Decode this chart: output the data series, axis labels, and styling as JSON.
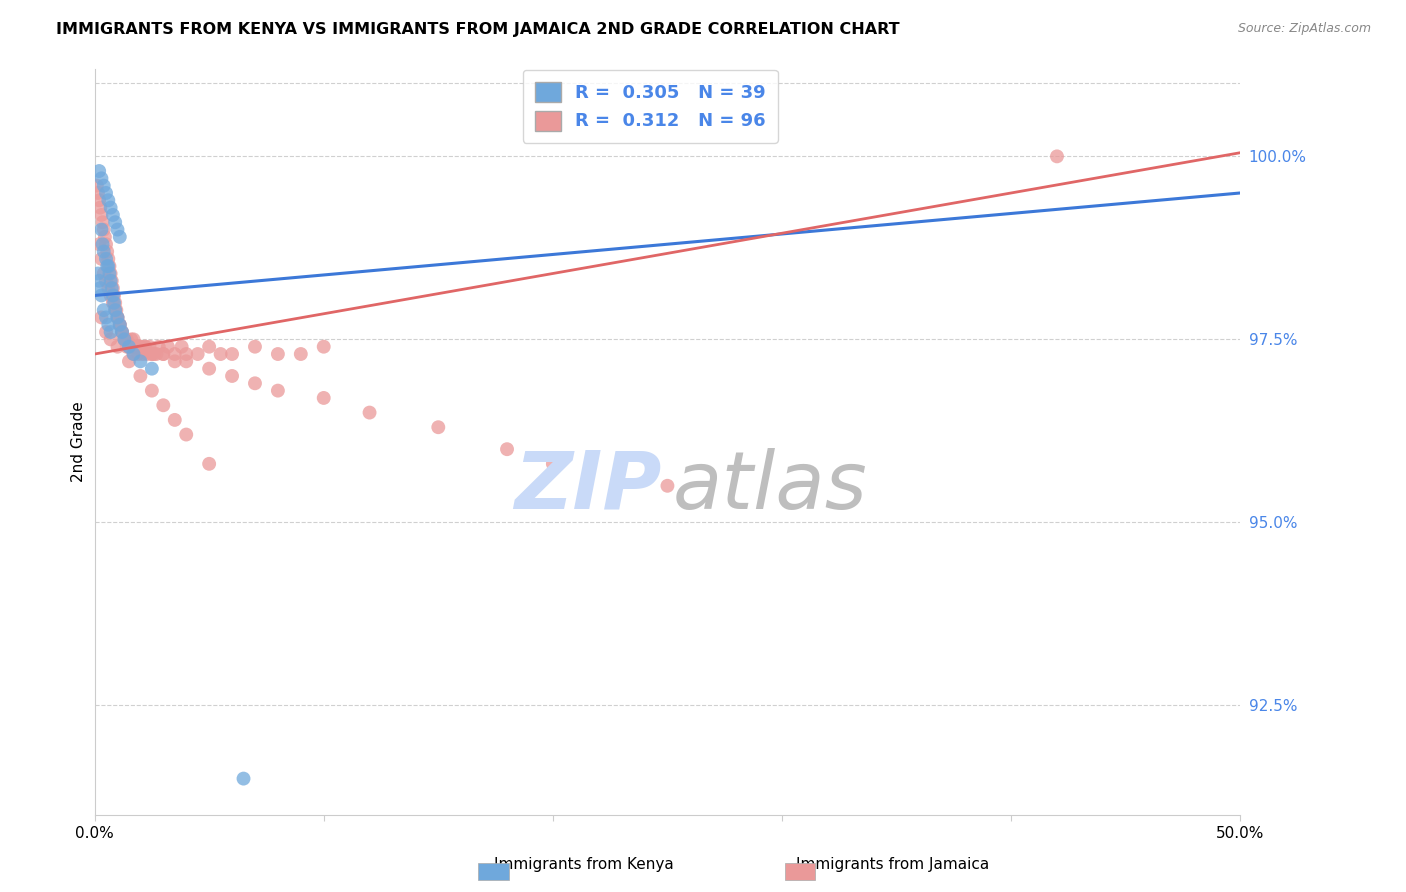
{
  "title": "IMMIGRANTS FROM KENYA VS IMMIGRANTS FROM JAMAICA 2ND GRADE CORRELATION CHART",
  "source": "Source: ZipAtlas.com",
  "ylabel_label": "2nd Grade",
  "xmin": 0.0,
  "xmax": 50.0,
  "ymin": 91.0,
  "ymax": 101.2,
  "yticks": [
    92.5,
    95.0,
    97.5,
    100.0
  ],
  "ytick_labels": [
    "92.5%",
    "95.0%",
    "97.5%",
    "100.0%"
  ],
  "xticks": [
    0,
    10,
    20,
    30,
    40,
    50
  ],
  "xtick_labels": [
    "0.0%",
    "",
    "",
    "",
    "",
    "50.0%"
  ],
  "kenya_color": "#6fa8dc",
  "jamaica_color": "#ea9999",
  "kenya_line_color": "#3c78d8",
  "jamaica_line_color": "#e06666",
  "tick_color": "#4a86e8",
  "watermark_zip_color": "#c9daf8",
  "watermark_atlas_color": "#b7b7b7",
  "R_kenya": 0.305,
  "N_kenya": 39,
  "R_jamaica": 0.312,
  "N_jamaica": 96,
  "kenya_x": [
    0.2,
    0.3,
    0.4,
    0.5,
    0.6,
    0.7,
    0.8,
    0.9,
    1.0,
    1.1,
    0.3,
    0.35,
    0.4,
    0.5,
    0.55,
    0.6,
    0.65,
    0.7,
    0.75,
    0.8,
    0.85,
    0.9,
    1.0,
    1.1,
    1.2,
    1.3,
    1.5,
    1.7,
    2.0,
    2.5,
    0.15,
    0.2,
    0.25,
    0.3,
    0.4,
    0.5,
    0.6,
    0.7,
    6.5
  ],
  "kenya_y": [
    99.8,
    99.7,
    99.6,
    99.5,
    99.4,
    99.3,
    99.2,
    99.1,
    99.0,
    98.9,
    99.0,
    98.8,
    98.7,
    98.6,
    98.5,
    98.5,
    98.4,
    98.3,
    98.2,
    98.1,
    98.0,
    97.9,
    97.8,
    97.7,
    97.6,
    97.5,
    97.4,
    97.3,
    97.2,
    97.1,
    98.4,
    98.3,
    98.2,
    98.1,
    97.9,
    97.8,
    97.7,
    97.6,
    91.5
  ],
  "jamaica_x": [
    0.1,
    0.15,
    0.2,
    0.25,
    0.3,
    0.35,
    0.4,
    0.45,
    0.5,
    0.55,
    0.6,
    0.65,
    0.7,
    0.75,
    0.8,
    0.85,
    0.9,
    0.95,
    1.0,
    1.1,
    1.2,
    1.3,
    1.4,
    1.5,
    1.6,
    1.7,
    1.8,
    1.9,
    2.0,
    2.1,
    2.2,
    2.3,
    2.4,
    2.5,
    2.6,
    2.7,
    2.8,
    3.0,
    3.2,
    3.5,
    3.8,
    4.0,
    4.5,
    5.0,
    5.5,
    6.0,
    7.0,
    8.0,
    9.0,
    10.0,
    0.2,
    0.3,
    0.4,
    0.5,
    0.6,
    0.7,
    0.8,
    0.9,
    1.0,
    1.1,
    1.2,
    1.3,
    1.4,
    1.5,
    1.6,
    1.7,
    1.8,
    1.9,
    2.0,
    2.2,
    2.5,
    3.0,
    3.5,
    4.0,
    5.0,
    6.0,
    7.0,
    8.0,
    10.0,
    12.0,
    15.0,
    18.0,
    20.0,
    25.0,
    42.0,
    0.3,
    0.5,
    0.7,
    1.0,
    1.5,
    2.0,
    2.5,
    3.0,
    3.5,
    4.0,
    5.0
  ],
  "jamaica_y": [
    99.6,
    99.5,
    99.4,
    99.3,
    99.2,
    99.1,
    99.0,
    98.9,
    98.8,
    98.7,
    98.6,
    98.5,
    98.4,
    98.3,
    98.2,
    98.1,
    98.0,
    97.9,
    97.8,
    97.7,
    97.6,
    97.5,
    97.4,
    97.4,
    97.5,
    97.3,
    97.4,
    97.3,
    97.4,
    97.3,
    97.4,
    97.3,
    97.4,
    97.3,
    97.3,
    97.3,
    97.4,
    97.3,
    97.4,
    97.3,
    97.4,
    97.3,
    97.3,
    97.4,
    97.3,
    97.3,
    97.4,
    97.3,
    97.3,
    97.4,
    98.8,
    98.6,
    98.4,
    98.3,
    98.2,
    98.1,
    98.0,
    97.9,
    97.8,
    97.7,
    97.6,
    97.5,
    97.5,
    97.4,
    97.4,
    97.5,
    97.4,
    97.4,
    97.4,
    97.4,
    97.3,
    97.3,
    97.2,
    97.2,
    97.1,
    97.0,
    96.9,
    96.8,
    96.7,
    96.5,
    96.3,
    96.0,
    95.8,
    95.5,
    100.0,
    97.8,
    97.6,
    97.5,
    97.4,
    97.2,
    97.0,
    96.8,
    96.6,
    96.4,
    96.2,
    95.8
  ]
}
